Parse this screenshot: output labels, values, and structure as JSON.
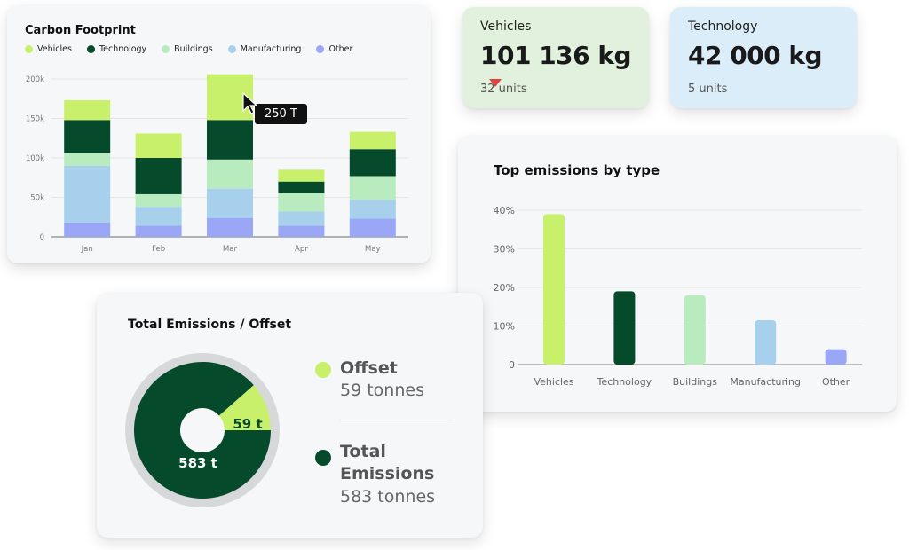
{
  "carbon_footprint": {
    "title": "Carbon Footprint",
    "tooltip": "250 T"
  },
  "kpis": {
    "vehicles": {
      "label": "Vehicles",
      "value": "101 136 kg",
      "sub": "32 units",
      "trend": "down",
      "bg": "#e2f1de"
    },
    "technology": {
      "label": "Technology",
      "value": "42 000 kg",
      "sub": "5 units",
      "bg": "#dbedf8"
    }
  },
  "top_emissions": {
    "title": "Top emissions by type"
  },
  "total_emissions": {
    "title": "Total Emissions / Offset",
    "offset_name": "Offset",
    "offset_value": "59 tonnes",
    "total_name": "Total Emissions",
    "total_value": "583 tonnes",
    "offset_slice_label": "59 t",
    "total_slice_label": "583 t"
  },
  "colors": {
    "vehicles": "#c8f06a",
    "technology": "#054a2b",
    "buildings": "#b8ecbf",
    "manufacturing": "#a6d0ec",
    "other": "#9aa7f7",
    "down_arrow": "#e0433b"
  },
  "chart_data": [
    {
      "type": "bar",
      "stacked": true,
      "title": "Carbon Footprint",
      "categories": [
        "Jan",
        "Feb",
        "Mar",
        "Apr",
        "May"
      ],
      "series": [
        {
          "name": "Other",
          "values": [
            18,
            14,
            24,
            14,
            23
          ]
        },
        {
          "name": "Manufacturing",
          "values": [
            72,
            24,
            37,
            18,
            24
          ]
        },
        {
          "name": "Buildings",
          "values": [
            16,
            16,
            37,
            24,
            30
          ]
        },
        {
          "name": "Technology",
          "values": [
            42,
            46,
            50,
            14,
            34
          ]
        },
        {
          "name": "Vehicles",
          "values": [
            25,
            31,
            58,
            15,
            22
          ]
        }
      ],
      "yticks": [
        "0",
        "50k",
        "100k",
        "150k",
        "200k"
      ],
      "ylim": [
        0,
        200
      ],
      "legend_position": "top-left",
      "grid": true
    },
    {
      "type": "bar",
      "title": "Top emissions by type",
      "categories": [
        "Vehicles",
        "Technology",
        "Buildings",
        "Manufacturing",
        "Other"
      ],
      "values": [
        39,
        19,
        18,
        11.5,
        4
      ],
      "yticks": [
        "0",
        "10%",
        "20%",
        "30%",
        "40%"
      ],
      "ylim": [
        0,
        40
      ],
      "grid": true
    },
    {
      "type": "pie",
      "title": "Total Emissions / Offset",
      "labels": [
        "Offset",
        "Total Emissions"
      ],
      "values": [
        59,
        583
      ]
    }
  ]
}
